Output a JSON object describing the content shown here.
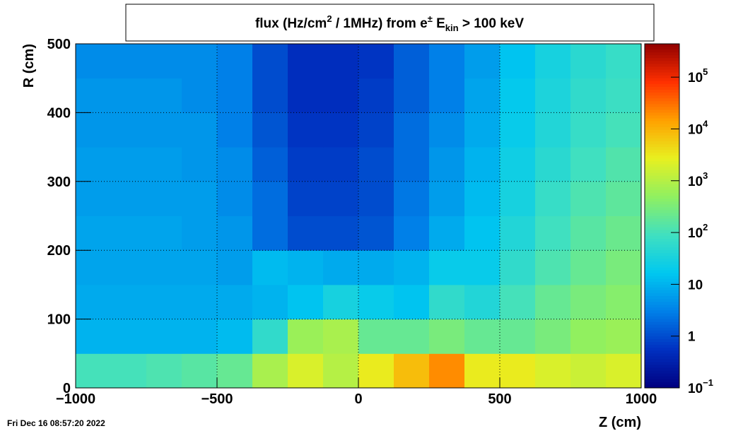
{
  "chart_data": {
    "type": "heatmap",
    "title_parts": [
      {
        "text": "flux (Hz/cm"
      },
      {
        "text": "2",
        "script": "sup"
      },
      {
        "text": " / 1MHz) from "
      },
      {
        "text": "e"
      },
      {
        "text": "±",
        "script": "sup"
      },
      {
        "text": " E"
      },
      {
        "text": "kin",
        "script": "sub"
      },
      {
        "text": " > 100 keV"
      }
    ],
    "x_label": "Z (cm)",
    "y_label": "R (cm)",
    "timestamp": "Fri Dec 16 08:57:20 2022",
    "xbins": [
      -1000,
      -875,
      -750,
      -625,
      -500,
      -375,
      -250,
      -125,
      0,
      125,
      250,
      375,
      500,
      625,
      750,
      875,
      1000
    ],
    "ybins": [
      0,
      50,
      100,
      150,
      200,
      250,
      300,
      350,
      400,
      450,
      500
    ],
    "values": [
      [
        100,
        100,
        120,
        150,
        200,
        800,
        2000,
        1000,
        3000,
        8000,
        20000,
        3000,
        3000,
        2000,
        1500,
        2000
      ],
      [
        10,
        10,
        10,
        10,
        12,
        60,
        600,
        800,
        200,
        200,
        300,
        200,
        200,
        300,
        500,
        600
      ],
      [
        8,
        8,
        8,
        8,
        8,
        10,
        15,
        30,
        20,
        15,
        60,
        40,
        100,
        200,
        300,
        400
      ],
      [
        7,
        7,
        7,
        7,
        6,
        12,
        10,
        8,
        8,
        10,
        20,
        20,
        60,
        120,
        200,
        300
      ],
      [
        7,
        7,
        7,
        6,
        5,
        2,
        1,
        1,
        1.2,
        3,
        8,
        15,
        40,
        90,
        150,
        220
      ],
      [
        6,
        6,
        6,
        6,
        4,
        2,
        0.8,
        0.8,
        1,
        2.5,
        6,
        12,
        30,
        70,
        120,
        170
      ],
      [
        6,
        6,
        6,
        5,
        4,
        1.5,
        0.7,
        0.7,
        1,
        2,
        5,
        10,
        25,
        50,
        90,
        130
      ],
      [
        5,
        5,
        5,
        5,
        3,
        1.2,
        0.6,
        0.6,
        0.8,
        2,
        4,
        8,
        20,
        40,
        70,
        100
      ],
      [
        5,
        5,
        5,
        4,
        3,
        1,
        0.5,
        0.5,
        0.7,
        1.5,
        3,
        7,
        18,
        35,
        60,
        80
      ],
      [
        4,
        4,
        4,
        4,
        3,
        1,
        0.5,
        0.5,
        0.6,
        1.5,
        3,
        6,
        15,
        30,
        50,
        70
      ]
    ],
    "xlim": [
      -1000,
      1000
    ],
    "ylim": [
      0,
      500
    ],
    "xticks": [
      {
        "value": -1000,
        "label": "−1000"
      },
      {
        "value": -500,
        "label": "−500"
      },
      0,
      500,
      1000
    ],
    "yticks": [
      0,
      100,
      200,
      300,
      400,
      500
    ],
    "grid": true,
    "zlim": [
      0.1,
      440000
    ],
    "zscale": "log",
    "zticks": [
      {
        "value": 0.1,
        "label": "10",
        "exponent": "−1"
      },
      1,
      10,
      {
        "value": 100,
        "label": "10",
        "exponent": "2"
      },
      {
        "value": 1000,
        "label": "10",
        "exponent": "3"
      },
      {
        "value": 10000,
        "label": "10",
        "exponent": "4"
      },
      {
        "value": 100000,
        "label": "10",
        "exponent": "5"
      }
    ],
    "palette": [
      "#000080",
      "#0030c0",
      "#0080e8",
      "#00c8f0",
      "#40e0c0",
      "#90f060",
      "#e8f020",
      "#ffa000",
      "#ff3000",
      "#900000"
    ]
  }
}
